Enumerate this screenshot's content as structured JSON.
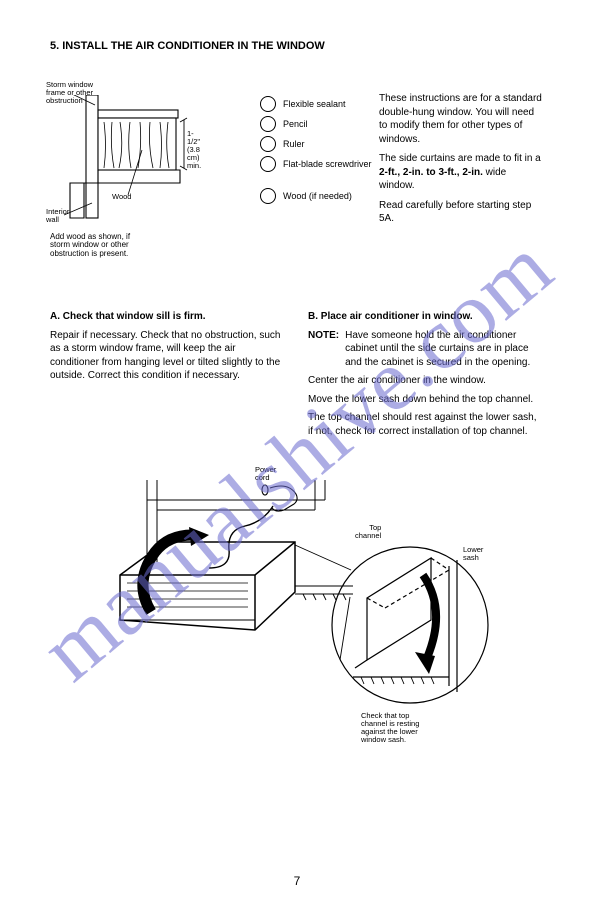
{
  "watermark": "manualshive.com",
  "page_number": "7",
  "heading": "5. INSTALL THE AIR CONDITIONER IN THE WINDOW",
  "sill_fig": {
    "storm_window": "Storm window\nframe or other\nobstruction",
    "interior_wall": "Interior\nwall",
    "dim": "1-1/2\"\n(3.8 cm)\nmin.",
    "wood": "Wood",
    "note_line1": "Add wood as shown, if",
    "note_line2": "storm window or other",
    "note_line3": "obstruction is present."
  },
  "circles": {
    "sealant": "Flexible sealant",
    "pencil": "Pencil",
    "ruler": "Ruler",
    "flat": "Flat-blade screwdriver",
    "wood": "Wood (if needed)"
  },
  "intro": {
    "p1": "These instructions are for a standard double-hung window. You will need to modify them for other types of windows.",
    "p2_pre": "The side curtains are made to fit in a ",
    "p2_sz": "2-ft., 2-in. to 3-ft., 2-in.",
    "p2_post": " wide window.",
    "p3": "Read carefully before starting step 5A."
  },
  "a": {
    "h": "A. Check that window sill is firm.",
    "p": "Repair if necessary. Check that no obstruction, such as a storm window frame, will keep the air conditioner from hanging level or tilted slightly to the outside. Correct this condition if necessary."
  },
  "b": {
    "h": "B. Place air conditioner in window.",
    "note_l": "NOTE:",
    "note": "Have someone hold the air conditioner cabinet until the side curtains are in place and the cabinet is secured in the opening.",
    "p1": "Center the air conditioner in the window.",
    "p2": "Move the lower sash down behind the top channel.",
    "p3": "The top channel should rest against the lower sash, if not, check for correct installation of top channel."
  },
  "main_fig": {
    "power": "Power\ncord",
    "top_channel": "Top\nchannel",
    "lower_sash": "Lower\nsash",
    "check": "Check that top\nchannel is resting\nagainst the lower\nwindow sash."
  },
  "style": {
    "stroke": "#000000",
    "bg": "#ffffff",
    "watermark_color": "#6a6acf"
  }
}
